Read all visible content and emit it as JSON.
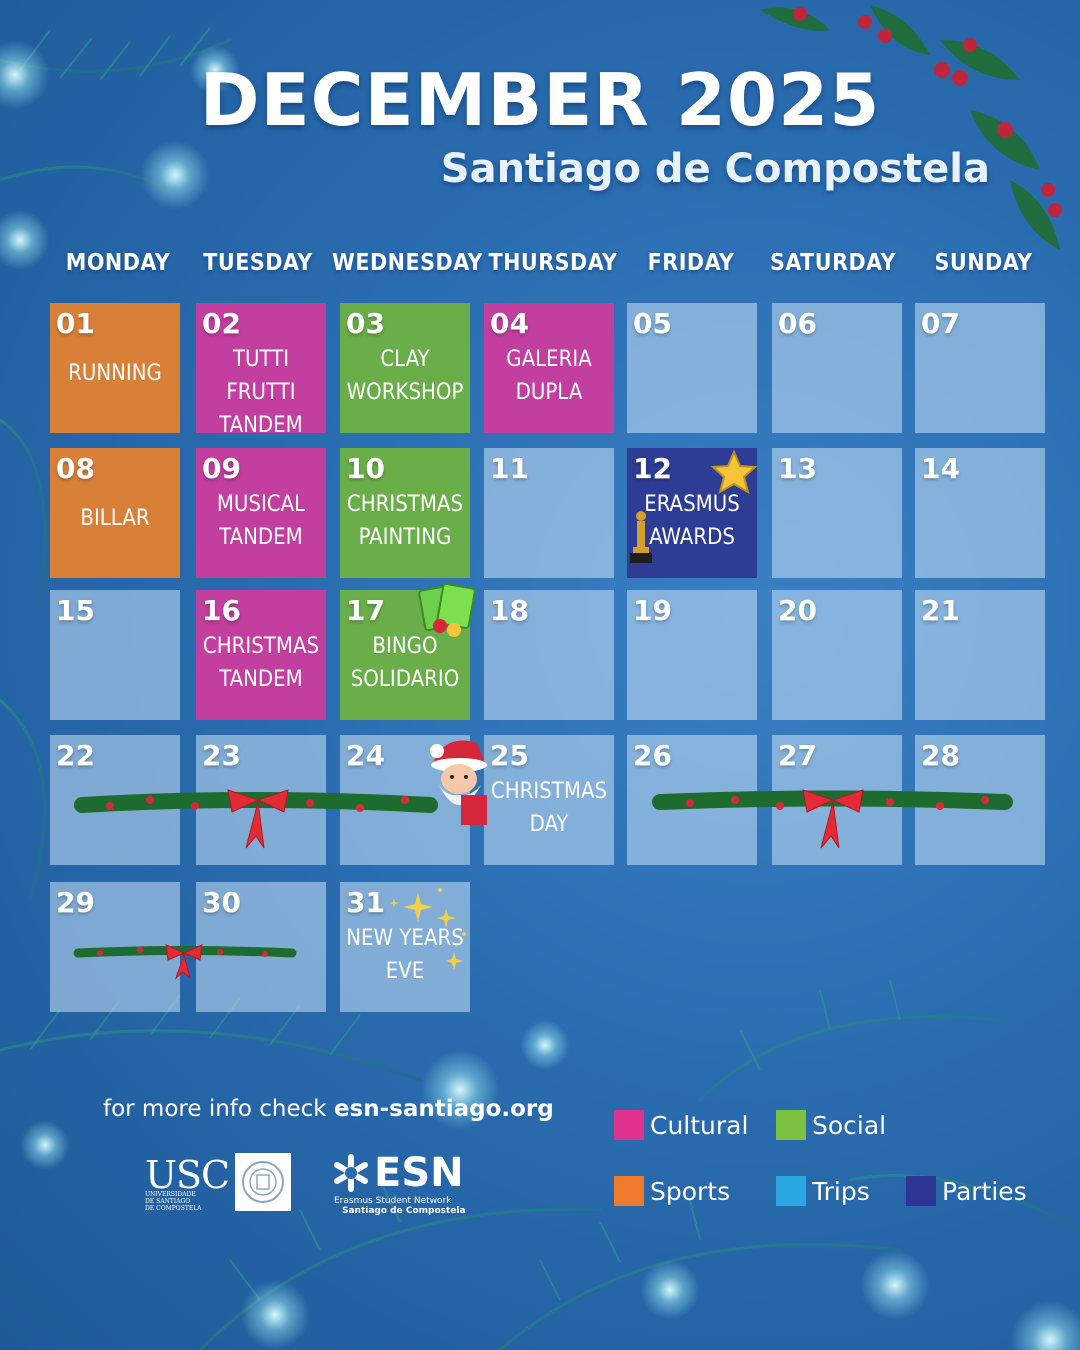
{
  "header": {
    "title": "DECEMBER 2025",
    "subtitle": "Santiago de Compostela"
  },
  "weekdays": [
    "MONDAY",
    "TUESDAY",
    "WEDNESDAY",
    "THURSDAY",
    "FRIDAY",
    "SATURDAY",
    "SUNDAY"
  ],
  "categories": {
    "cultural": {
      "label": "Cultural",
      "color": "#e0328f"
    },
    "social": {
      "label": "Social",
      "color": "#7cc140"
    },
    "sports": {
      "label": "Sports",
      "color": "#f07a2c"
    },
    "trips": {
      "label": "Trips",
      "color": "#2aa7e0"
    },
    "parties": {
      "label": "Parties",
      "color": "#2e3592"
    }
  },
  "days": [
    {
      "num": "01",
      "lines": [
        "RUNNING"
      ],
      "category": "sports"
    },
    {
      "num": "02",
      "lines": [
        "TUTTI FRUTTI",
        "TANDEM"
      ],
      "category": "cultural"
    },
    {
      "num": "03",
      "lines": [
        "CLAY",
        "WORKSHOP"
      ],
      "category": "social"
    },
    {
      "num": "04",
      "lines": [
        "GALERIA",
        "DUPLA"
      ],
      "category": "cultural"
    },
    {
      "num": "05",
      "lines": [],
      "category": ""
    },
    {
      "num": "06",
      "lines": [],
      "category": ""
    },
    {
      "num": "07",
      "lines": [],
      "category": ""
    },
    {
      "num": "08",
      "lines": [
        "BILLAR"
      ],
      "category": "sports"
    },
    {
      "num": "09",
      "lines": [
        "MUSICAL",
        "TANDEM"
      ],
      "category": "cultural"
    },
    {
      "num": "10",
      "lines": [
        "CHRISTMAS",
        "PAINTING"
      ],
      "category": "social"
    },
    {
      "num": "11",
      "lines": [],
      "category": ""
    },
    {
      "num": "12",
      "lines": [
        "ERASMUS",
        "AWARDS"
      ],
      "category": "parties",
      "icon": "star-trophy-icon"
    },
    {
      "num": "13",
      "lines": [],
      "category": ""
    },
    {
      "num": "14",
      "lines": [],
      "category": ""
    },
    {
      "num": "15",
      "lines": [],
      "category": ""
    },
    {
      "num": "16",
      "lines": [
        "CHRISTMAS",
        "TANDEM"
      ],
      "category": "cultural"
    },
    {
      "num": "17",
      "lines": [
        "BINGO",
        "SOLIDARIO"
      ],
      "category": "social",
      "icon": "bingo-card-icon"
    },
    {
      "num": "18",
      "lines": [],
      "category": ""
    },
    {
      "num": "19",
      "lines": [],
      "category": ""
    },
    {
      "num": "20",
      "lines": [],
      "category": ""
    },
    {
      "num": "21",
      "lines": [],
      "category": ""
    },
    {
      "num": "22",
      "lines": [],
      "category": ""
    },
    {
      "num": "23",
      "lines": [],
      "category": ""
    },
    {
      "num": "24",
      "lines": [],
      "category": ""
    },
    {
      "num": "25",
      "lines": [
        "CHRISTMAS",
        "DAY"
      ],
      "category": "",
      "icon": "santa-claus-icon"
    },
    {
      "num": "26",
      "lines": [],
      "category": ""
    },
    {
      "num": "27",
      "lines": [],
      "category": ""
    },
    {
      "num": "28",
      "lines": [],
      "category": ""
    },
    {
      "num": "29",
      "lines": [],
      "category": ""
    },
    {
      "num": "30",
      "lines": [],
      "category": ""
    },
    {
      "num": "31",
      "lines": [
        "NEW YEARS",
        "EVE"
      ],
      "category": "",
      "icon": "sparkles-icon"
    }
  ],
  "footer": {
    "info_prefix": "for more info check",
    "info_link": "esn-santiago.org",
    "usc_logo_text": "USC",
    "usc_sub": [
      "UNIVERSIDADE",
      "DE SANTIAGO",
      "DE COMPOSTELA"
    ],
    "esn_logo_text": "ESN",
    "esn_sub1": "Erasmus Student Network",
    "esn_sub2": "Santiago de Compostela"
  }
}
